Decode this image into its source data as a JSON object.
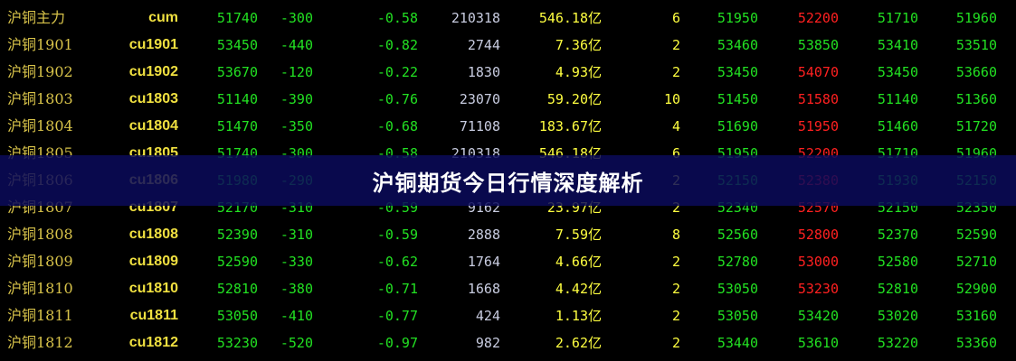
{
  "colors": {
    "name": "#d8c34a",
    "code": "#f0e040",
    "down": "#22e022",
    "up": "#ff2020",
    "volume": "#c8cce0",
    "amount": "#ffff40"
  },
  "banner": {
    "title": "沪铜期货今日行情深度解析"
  },
  "rows": [
    {
      "name": "沪铜主力",
      "code": "cum",
      "price": "51740",
      "change": "-300",
      "pct": "-0.58",
      "volume": "210318",
      "amount": "546.18亿",
      "count": "6",
      "open": "51950",
      "high": "52200",
      "low": "51710",
      "last": "51960",
      "high_up": true
    },
    {
      "name": "沪铜1901",
      "code": "cu1901",
      "price": "53450",
      "change": "-440",
      "pct": "-0.82",
      "volume": "2744",
      "amount": "7.36亿",
      "count": "2",
      "open": "53460",
      "high": "53850",
      "low": "53410",
      "last": "53510",
      "high_up": false
    },
    {
      "name": "沪铜1902",
      "code": "cu1902",
      "price": "53670",
      "change": "-120",
      "pct": "-0.22",
      "volume": "1830",
      "amount": "4.93亿",
      "count": "2",
      "open": "53450",
      "high": "54070",
      "low": "53450",
      "last": "53660",
      "high_up": true
    },
    {
      "name": "沪铜1803",
      "code": "cu1803",
      "price": "51140",
      "change": "-390",
      "pct": "-0.76",
      "volume": "23070",
      "amount": "59.20亿",
      "count": "10",
      "open": "51450",
      "high": "51580",
      "low": "51140",
      "last": "51360",
      "high_up": true
    },
    {
      "name": "沪铜1804",
      "code": "cu1804",
      "price": "51470",
      "change": "-350",
      "pct": "-0.68",
      "volume": "71108",
      "amount": "183.67亿",
      "count": "4",
      "open": "51690",
      "high": "51950",
      "low": "51460",
      "last": "51720",
      "high_up": true
    },
    {
      "name": "沪铜1805",
      "code": "cu1805",
      "price": "51740",
      "change": "-300",
      "pct": "-0.58",
      "volume": "210318",
      "amount": "546.18亿",
      "count": "6",
      "open": "51950",
      "high": "52200",
      "low": "51710",
      "last": "51960",
      "high_up": true
    },
    {
      "name": "沪铜1806",
      "code": "cu1806",
      "price": "51980",
      "change": "-290",
      "pct": "",
      "volume": "",
      "amount": "",
      "count": "2",
      "open": "52150",
      "high": "52380",
      "low": "51930",
      "last": "52150",
      "high_up": true
    },
    {
      "name": "沪铜1807",
      "code": "cu1807",
      "price": "52170",
      "change": "-310",
      "pct": "-0.59",
      "volume": "9162",
      "amount": "23.97亿",
      "count": "2",
      "open": "52340",
      "high": "52570",
      "low": "52150",
      "last": "52350",
      "high_up": true
    },
    {
      "name": "沪铜1808",
      "code": "cu1808",
      "price": "52390",
      "change": "-310",
      "pct": "-0.59",
      "volume": "2888",
      "amount": "7.59亿",
      "count": "8",
      "open": "52560",
      "high": "52800",
      "low": "52370",
      "last": "52590",
      "high_up": true
    },
    {
      "name": "沪铜1809",
      "code": "cu1809",
      "price": "52590",
      "change": "-330",
      "pct": "-0.62",
      "volume": "1764",
      "amount": "4.66亿",
      "count": "2",
      "open": "52780",
      "high": "53000",
      "low": "52580",
      "last": "52710",
      "high_up": true
    },
    {
      "name": "沪铜1810",
      "code": "cu1810",
      "price": "52810",
      "change": "-380",
      "pct": "-0.71",
      "volume": "1668",
      "amount": "4.42亿",
      "count": "2",
      "open": "53050",
      "high": "53230",
      "low": "52810",
      "last": "52900",
      "high_up": true
    },
    {
      "name": "沪铜1811",
      "code": "cu1811",
      "price": "53050",
      "change": "-410",
      "pct": "-0.77",
      "volume": "424",
      "amount": "1.13亿",
      "count": "2",
      "open": "53050",
      "high": "53420",
      "low": "53020",
      "last": "53160",
      "high_up": false
    },
    {
      "name": "沪铜1812",
      "code": "cu1812",
      "price": "53230",
      "change": "-520",
      "pct": "-0.97",
      "volume": "982",
      "amount": "2.62亿",
      "count": "2",
      "open": "53440",
      "high": "53610",
      "low": "53220",
      "last": "53360",
      "high_up": false
    }
  ]
}
